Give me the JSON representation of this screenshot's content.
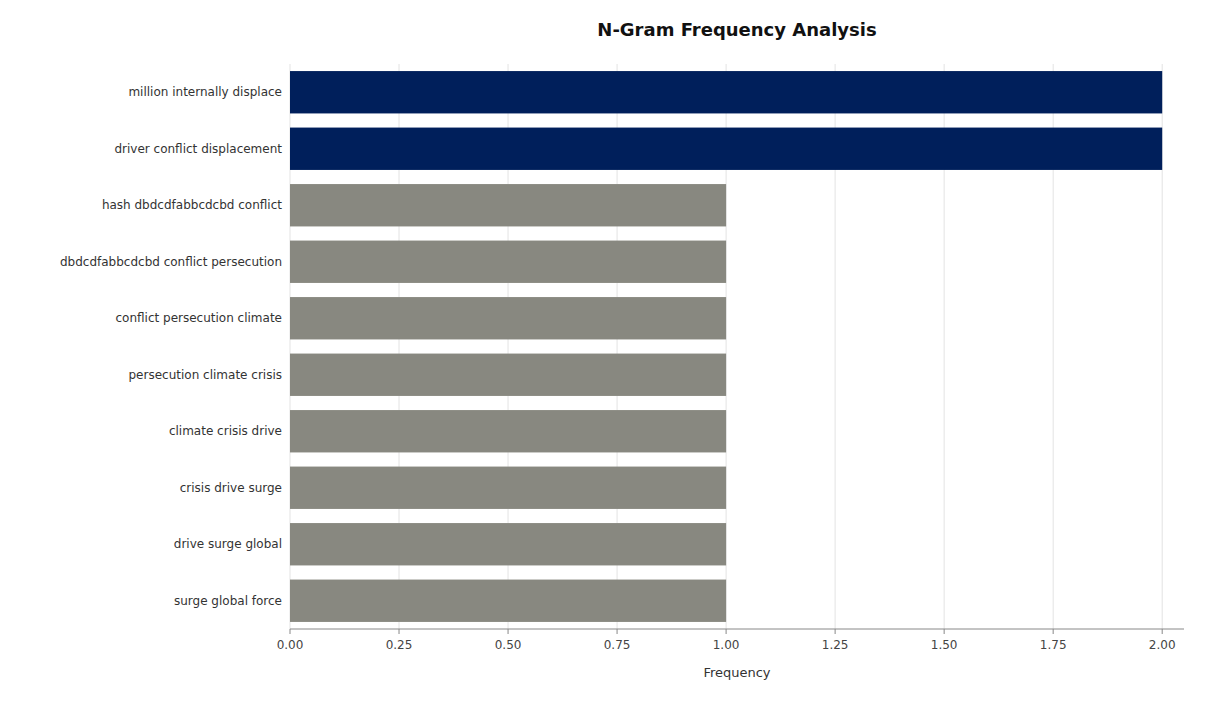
{
  "chart_data": {
    "type": "bar",
    "orientation": "horizontal",
    "title": "N-Gram Frequency Analysis",
    "xlabel": "Frequency",
    "categories": [
      "surge global force",
      "drive surge global",
      "crisis drive surge",
      "climate crisis drive",
      "persecution climate crisis",
      "conflict persecution climate",
      "dbdcdfabbcdcbd conflict persecution",
      "hash dbdcdfabbcdcbd conflict",
      "driver conflict displacement",
      "million internally displace"
    ],
    "values": [
      1,
      1,
      1,
      1,
      1,
      1,
      1,
      1,
      2,
      2
    ],
    "colors": [
      "#888880",
      "#888880",
      "#888880",
      "#888880",
      "#888880",
      "#888880",
      "#888880",
      "#888880",
      "#001f5b",
      "#001f5b"
    ],
    "xlim": [
      0,
      2.05
    ],
    "xticks": [
      {
        "value": 0.0,
        "label": "0.00"
      },
      {
        "value": 0.25,
        "label": "0.25"
      },
      {
        "value": 0.5,
        "label": "0.50"
      },
      {
        "value": 0.75,
        "label": "0.75"
      },
      {
        "value": 1.0,
        "label": "1.00"
      },
      {
        "value": 1.25,
        "label": "1.25"
      },
      {
        "value": 1.5,
        "label": "1.50"
      },
      {
        "value": 1.75,
        "label": "1.75"
      },
      {
        "value": 2.0,
        "label": "2.00"
      }
    ],
    "grid": true
  }
}
